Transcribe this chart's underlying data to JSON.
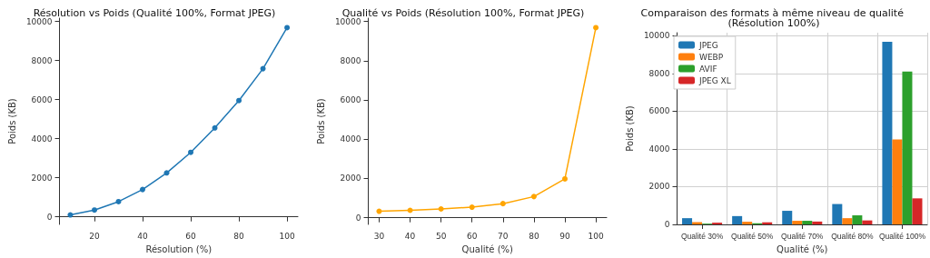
{
  "chart_data": [
    {
      "type": "line",
      "title": "Résolution vs Poids (Qualité 100%, Format JPEG)",
      "xlabel": "Résolution (%)",
      "ylabel": "Poids (KB)",
      "x": [
        10,
        20,
        30,
        40,
        50,
        60,
        70,
        80,
        90,
        100
      ],
      "series": [
        {
          "color": "#1f77b4",
          "values": [
            100,
            350,
            780,
            1400,
            2250,
            3300,
            4550,
            5950,
            7580,
            9680
          ]
        }
      ],
      "xlim": [
        5.5,
        104.5
      ],
      "xticks": [
        20,
        40,
        60,
        80,
        100
      ],
      "ylim": [
        -384,
        10164
      ],
      "yticks": [
        0,
        2000,
        4000,
        6000,
        8000,
        10000
      ],
      "marker": "circle",
      "grid": false,
      "legend": false
    },
    {
      "type": "line",
      "title": "Qualité vs Poids (Résolution 100%, Format JPEG)",
      "xlabel": "Qualité (%)",
      "ylabel": "Poids (KB)",
      "x": [
        30,
        40,
        50,
        60,
        70,
        80,
        90,
        100
      ],
      "series": [
        {
          "color": "#ffa500",
          "values": [
            330,
            380,
            450,
            540,
            720,
            1080,
            1980,
            9680
          ]
        }
      ],
      "xlim": [
        26.5,
        103.5
      ],
      "xticks": [
        30,
        40,
        50,
        60,
        70,
        80,
        90,
        100
      ],
      "ylim": [
        -337,
        10163
      ],
      "yticks": [
        0,
        2000,
        4000,
        6000,
        8000,
        10000
      ],
      "marker": "circle",
      "grid": false,
      "legend": false
    },
    {
      "type": "bar",
      "title": "Comparaison des formats à même niveau de qualité (Résolution 100%)",
      "xlabel": "Qualité (%)",
      "ylabel": "Poids (KB)",
      "categories": [
        "Qualité 30%",
        "Qualité 50%",
        "Qualité 70%",
        "Qualité 80%",
        "Qualité 100%"
      ],
      "series": [
        {
          "name": "JPEG",
          "color": "#1f77b4",
          "values": [
            330,
            440,
            720,
            1080,
            9680
          ]
        },
        {
          "name": "WEBP",
          "color": "#ff7f0e",
          "values": [
            120,
            140,
            190,
            330,
            4500
          ]
        },
        {
          "name": "AVIF",
          "color": "#2ca02c",
          "values": [
            40,
            60,
            190,
            480,
            8100
          ]
        },
        {
          "name": "JPEG XL",
          "color": "#d62728",
          "values": [
            90,
            110,
            150,
            210,
            1380
          ]
        }
      ],
      "ylim": [
        0,
        10164
      ],
      "yticks": [
        0,
        2000,
        4000,
        6000,
        8000,
        10000
      ],
      "grid": true,
      "legend": "top left"
    }
  ]
}
